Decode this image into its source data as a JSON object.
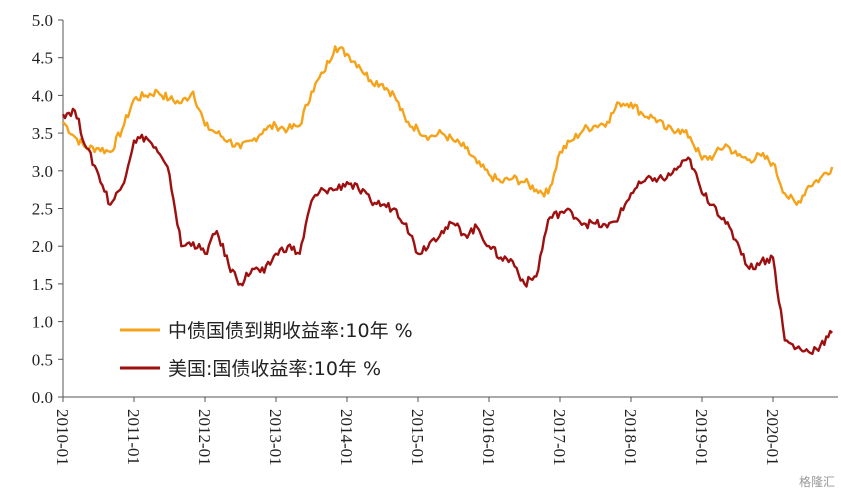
{
  "chart_data": {
    "type": "line",
    "title": "",
    "xlabel": "",
    "ylabel": "",
    "ylim": [
      0,
      5
    ],
    "yticks": [
      "0.0",
      "0.5",
      "1.0",
      "1.5",
      "2.0",
      "2.5",
      "3.0",
      "3.5",
      "4.0",
      "4.5",
      "5.0"
    ],
    "xticks": [
      "2010-01",
      "2011-01",
      "2012-01",
      "2013-01",
      "2014-01",
      "2015-01",
      "2016-01",
      "2017-01",
      "2018-01",
      "2019-01",
      "2020-01"
    ],
    "legend_position": "bottom-left inside plot",
    "series": [
      {
        "name": "中债国债到期收益率:10年 %",
        "color": "#F5A31A",
        "x": [
          "2010-01",
          "2010-03",
          "2010-05",
          "2010-07",
          "2010-09",
          "2010-11",
          "2011-01",
          "2011-03",
          "2011-05",
          "2011-07",
          "2011-09",
          "2011-11",
          "2012-01",
          "2012-03",
          "2012-05",
          "2012-07",
          "2012-09",
          "2012-11",
          "2013-01",
          "2013-03",
          "2013-05",
          "2013-07",
          "2013-09",
          "2013-11",
          "2014-01",
          "2014-03",
          "2014-05",
          "2014-07",
          "2014-09",
          "2014-11",
          "2015-01",
          "2015-03",
          "2015-05",
          "2015-07",
          "2015-09",
          "2015-11",
          "2016-01",
          "2016-03",
          "2016-05",
          "2016-07",
          "2016-09",
          "2016-11",
          "2017-01",
          "2017-03",
          "2017-05",
          "2017-07",
          "2017-09",
          "2017-11",
          "2018-01",
          "2018-03",
          "2018-05",
          "2018-07",
          "2018-09",
          "2018-11",
          "2019-01",
          "2019-03",
          "2019-05",
          "2019-07",
          "2019-09",
          "2019-11",
          "2020-01",
          "2020-03",
          "2020-05",
          "2020-07",
          "2020-09",
          "2020-11"
        ],
        "values": [
          3.65,
          3.45,
          3.3,
          3.3,
          3.25,
          3.55,
          3.95,
          4.0,
          4.05,
          3.95,
          3.9,
          4.05,
          3.6,
          3.5,
          3.4,
          3.3,
          3.4,
          3.55,
          3.6,
          3.55,
          3.6,
          4.05,
          4.3,
          4.65,
          4.55,
          4.4,
          4.2,
          4.15,
          4.0,
          3.65,
          3.55,
          3.45,
          3.5,
          3.4,
          3.3,
          3.1,
          2.95,
          2.85,
          2.9,
          2.85,
          2.75,
          2.7,
          3.25,
          3.4,
          3.55,
          3.6,
          3.65,
          3.9,
          3.9,
          3.75,
          3.7,
          3.55,
          3.55,
          3.45,
          3.15,
          3.2,
          3.35,
          3.2,
          3.15,
          3.2,
          3.1,
          2.7,
          2.55,
          2.8,
          2.9,
          3.05
        ]
      },
      {
        "name": "美国:国债收益率:10年 %",
        "color": "#9E1010",
        "x": [
          "2010-01",
          "2010-03",
          "2010-05",
          "2010-07",
          "2010-09",
          "2010-11",
          "2011-01",
          "2011-03",
          "2011-05",
          "2011-07",
          "2011-09",
          "2011-11",
          "2012-01",
          "2012-03",
          "2012-05",
          "2012-07",
          "2012-09",
          "2012-11",
          "2013-01",
          "2013-03",
          "2013-05",
          "2013-07",
          "2013-09",
          "2013-11",
          "2014-01",
          "2014-03",
          "2014-05",
          "2014-07",
          "2014-09",
          "2014-11",
          "2015-01",
          "2015-03",
          "2015-05",
          "2015-07",
          "2015-09",
          "2015-11",
          "2016-01",
          "2016-03",
          "2016-05",
          "2016-07",
          "2016-09",
          "2016-11",
          "2017-01",
          "2017-03",
          "2017-05",
          "2017-07",
          "2017-09",
          "2017-11",
          "2018-01",
          "2018-03",
          "2018-05",
          "2018-07",
          "2018-09",
          "2018-11",
          "2019-01",
          "2019-03",
          "2019-05",
          "2019-07",
          "2019-09",
          "2019-11",
          "2020-01",
          "2020-03",
          "2020-05",
          "2020-07",
          "2020-09",
          "2020-11"
        ],
        "values": [
          3.75,
          3.8,
          3.3,
          2.95,
          2.55,
          2.8,
          3.4,
          3.45,
          3.25,
          2.95,
          2.0,
          2.05,
          1.9,
          2.2,
          1.75,
          1.5,
          1.7,
          1.65,
          1.9,
          2.0,
          1.9,
          2.6,
          2.75,
          2.75,
          2.85,
          2.75,
          2.6,
          2.55,
          2.5,
          2.3,
          1.9,
          2.05,
          2.2,
          2.3,
          2.15,
          2.25,
          2.0,
          1.85,
          1.8,
          1.5,
          1.6,
          2.35,
          2.45,
          2.45,
          2.3,
          2.3,
          2.25,
          2.4,
          2.7,
          2.85,
          2.9,
          2.9,
          3.05,
          3.15,
          2.7,
          2.55,
          2.3,
          2.05,
          1.7,
          1.8,
          1.85,
          0.75,
          0.65,
          0.6,
          0.68,
          0.85
        ]
      }
    ]
  },
  "watermark": "格隆汇"
}
